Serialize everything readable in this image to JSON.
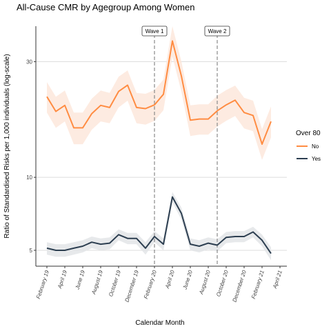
{
  "chart_data": {
    "type": "line",
    "title": "All-Cause CMR by Agegroup Among Women",
    "xlabel": "Calendar Month",
    "ylabel": "Ratio of Standardised Risks per 1,000 individuals (log-scale)",
    "y_scale": "log",
    "ylim": [
      4.3,
      42
    ],
    "y_ticks": [
      5,
      10,
      30
    ],
    "x": [
      "2019-02",
      "2019-03",
      "2019-04",
      "2019-05",
      "2019-06",
      "2019-07",
      "2019-08",
      "2019-09",
      "2019-10",
      "2019-11",
      "2019-12",
      "2020-01",
      "2020-02",
      "2020-03",
      "2020-04",
      "2020-05",
      "2020-06",
      "2020-07",
      "2020-08",
      "2020-09",
      "2020-10",
      "2020-11",
      "2020-12",
      "2021-01",
      "2021-02",
      "2021-03"
    ],
    "x_tick_labels": [
      "February 19",
      "April 19",
      "June 19",
      "August 19",
      "October 19",
      "December 19",
      "February 20",
      "April 20",
      "June 20",
      "August 20",
      "October 20",
      "December 20",
      "February 21",
      "April 21"
    ],
    "annotations": [
      {
        "label": "Wave 1",
        "x": "2020-02"
      },
      {
        "label": "Wave 2",
        "x": "2020-09"
      }
    ],
    "legend": {
      "title": "Over 80",
      "placement": "right"
    },
    "grid": true,
    "series": [
      {
        "name": "No",
        "color": "#ff8c42",
        "band_color": "#fde8dc",
        "values": [
          21.5,
          18.7,
          19.8,
          16.0,
          16.0,
          18.3,
          19.8,
          19.4,
          22.6,
          24.0,
          19.4,
          19.2,
          19.9,
          22.0,
          36.5,
          26.2,
          17.2,
          17.4,
          17.4,
          18.8,
          19.9,
          20.8,
          18.5,
          18.0,
          13.7,
          17.0
        ],
        "lower": [
          18.5,
          16.0,
          17.0,
          13.7,
          13.7,
          15.7,
          17.0,
          16.7,
          19.4,
          20.7,
          16.7,
          16.5,
          17.1,
          18.9,
          31.5,
          22.6,
          14.8,
          15.0,
          15.0,
          16.2,
          17.1,
          17.9,
          15.9,
          15.5,
          11.8,
          14.6
        ],
        "upper": [
          24.7,
          21.5,
          22.8,
          18.5,
          18.5,
          21.1,
          22.8,
          22.3,
          26.0,
          27.6,
          22.3,
          22.1,
          22.9,
          25.3,
          42.0,
          30.1,
          19.8,
          20.0,
          20.0,
          21.7,
          22.9,
          23.9,
          21.3,
          20.7,
          15.8,
          19.6
        ]
      },
      {
        "name": "Yes",
        "color": "#2c3e50",
        "band_color": "#e3e5e8",
        "values": [
          5.1,
          5.0,
          5.0,
          5.1,
          5.2,
          5.4,
          5.3,
          5.35,
          5.8,
          5.6,
          5.6,
          5.1,
          5.7,
          5.3,
          8.3,
          7.1,
          5.3,
          5.2,
          5.35,
          5.25,
          5.65,
          5.7,
          5.7,
          5.95,
          5.5,
          4.85
        ],
        "lower": [
          4.8,
          4.7,
          4.7,
          4.8,
          4.9,
          5.1,
          5.0,
          5.05,
          5.5,
          5.3,
          5.3,
          4.8,
          5.4,
          5.0,
          7.9,
          6.7,
          5.0,
          4.9,
          5.05,
          4.95,
          5.35,
          5.4,
          5.4,
          5.65,
          5.2,
          4.55
        ],
        "upper": [
          5.4,
          5.3,
          5.3,
          5.4,
          5.5,
          5.7,
          5.6,
          5.65,
          6.1,
          5.9,
          5.9,
          5.4,
          6.0,
          5.6,
          8.7,
          7.5,
          5.6,
          5.5,
          5.65,
          5.55,
          5.95,
          6.0,
          6.0,
          6.25,
          5.8,
          5.15
        ]
      }
    ]
  }
}
